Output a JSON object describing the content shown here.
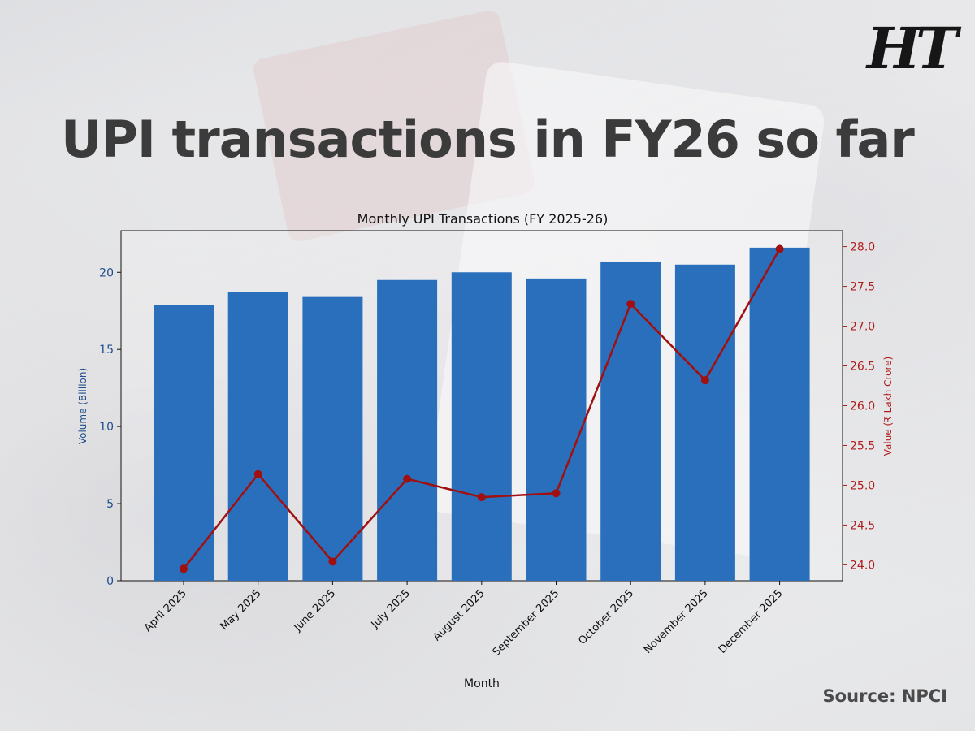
{
  "branding": {
    "logo_text": "HT"
  },
  "headline": "UPI transactions in FY26 so far",
  "source": "Source: NPCI",
  "colors": {
    "bar": "#2a6fbb",
    "line": "#a01010",
    "left_axis": "#1f4e8c",
    "right_axis": "#b01c1c"
  },
  "chart_data": {
    "type": "bar",
    "title": "Monthly UPI Transactions (FY 2025-26)",
    "xlabel": "Month",
    "ylabel": "Volume (Billion)",
    "y2label": "Value (₹ Lakh Crore)",
    "categories": [
      "April 2025",
      "May 2025",
      "June 2025",
      "July 2025",
      "August 2025",
      "September 2025",
      "October 2025",
      "November 2025",
      "December 2025"
    ],
    "series": [
      {
        "type": "bar",
        "axis": "left",
        "values": [
          17.9,
          18.7,
          18.4,
          19.5,
          20.0,
          19.6,
          20.7,
          20.5,
          21.6
        ]
      },
      {
        "type": "line",
        "axis": "right",
        "values": [
          23.95,
          25.14,
          24.04,
          25.08,
          24.85,
          24.9,
          27.28,
          26.32,
          27.97
        ]
      }
    ],
    "ylim": [
      0,
      22.7
    ],
    "y2lim": [
      23.8,
      28.2
    ],
    "yticks": [
      0,
      5,
      10,
      15,
      20
    ],
    "y2ticks": [
      24.0,
      24.5,
      25.0,
      25.5,
      26.0,
      26.5,
      27.0,
      27.5,
      28.0
    ],
    "grid": false,
    "legend": "none"
  }
}
